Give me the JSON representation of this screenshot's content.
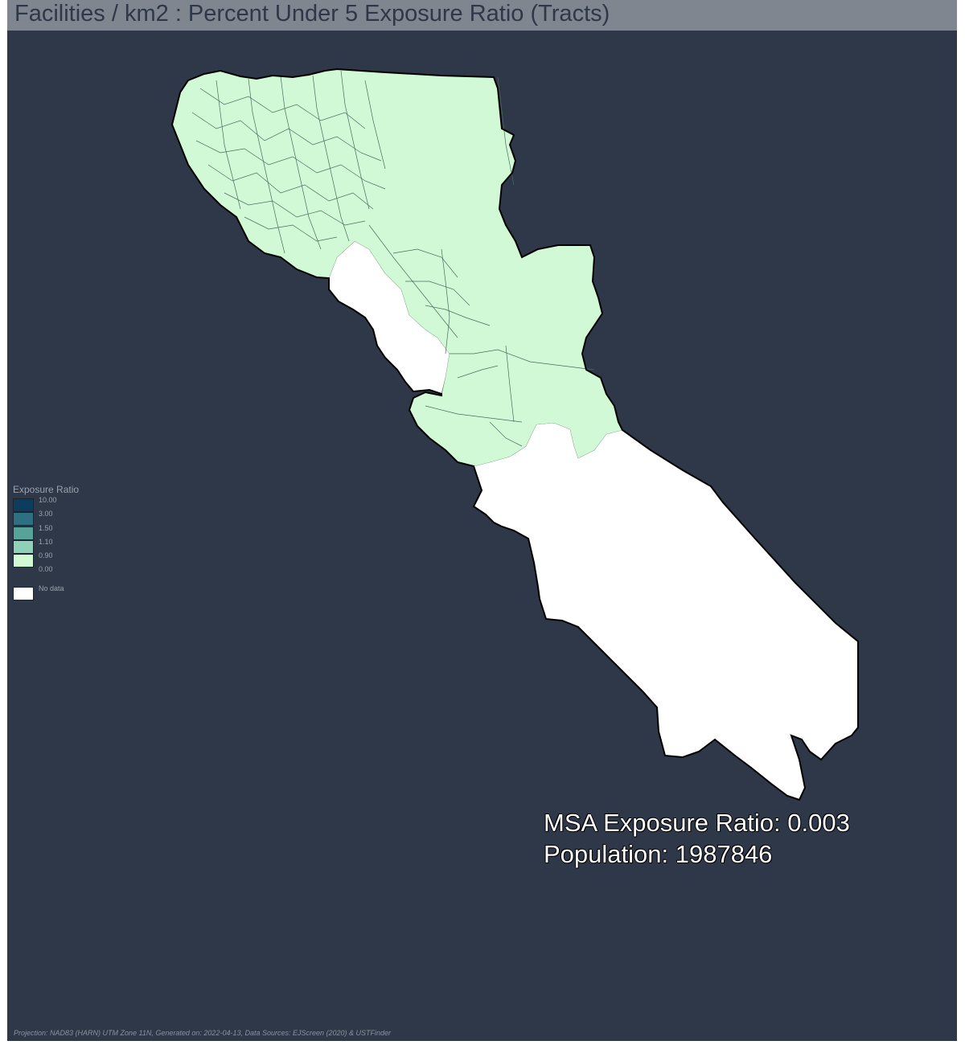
{
  "title": "Facilities / km2 : Percent Under 5 Exposure Ratio (Tracts)",
  "legend": {
    "title": "Exposure Ratio",
    "classes": [
      {
        "label": "10.00",
        "color": "#0d3d5e"
      },
      {
        "label": "3.00",
        "color": "#2f6f82"
      },
      {
        "label": "1.50",
        "color": "#57a39a"
      },
      {
        "label": "1.10",
        "color": "#8fd0b6"
      },
      {
        "label": "0.90",
        "color": "#d2f9d6"
      }
    ],
    "min_label": "0.00",
    "nodata": {
      "label": "No data",
      "color": "#ffffff"
    }
  },
  "map": {
    "background_color": "#2e3848",
    "tract_fill_color": "#d2f9d6",
    "nodata_fill_color": "#ffffff",
    "outline_color": "#000000",
    "tract_line_color": "#4b6b5e"
  },
  "summary": {
    "exposure_line": "MSA Exposure Ratio: 0.003",
    "population_line": "Population: 1987846"
  },
  "footer": "Projection: NAD83 (HARN) UTM Zone 11N, Generated on: 2022-04-13, Data Sources: EJScreen (2020) & USTFinder"
}
